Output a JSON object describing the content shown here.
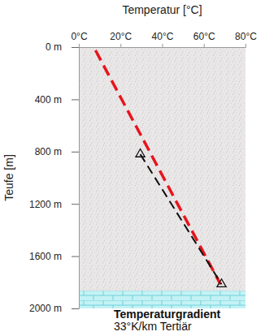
{
  "chart_data": {
    "type": "line",
    "x_label": "Temperatur [°C]",
    "y_label": "Teufe [m]",
    "xlim": [
      0,
      80
    ],
    "xticks": [
      {
        "value": 0,
        "label": "0°C"
      },
      {
        "value": 20,
        "label": "20°C"
      },
      {
        "value": 40,
        "label": "40°C"
      },
      {
        "value": 60,
        "label": "60°C"
      },
      {
        "value": 80,
        "label": "80°C"
      }
    ],
    "ylim": [
      0,
      2000
    ],
    "yticks": [
      {
        "value": 0,
        "label": "0 m"
      },
      {
        "value": 400,
        "label": "400 m"
      },
      {
        "value": 800,
        "label": "800 m"
      },
      {
        "value": 1200,
        "label": "1200 m"
      },
      {
        "value": 1600,
        "label": "1600 m"
      },
      {
        "value": 2000,
        "label": "2000 m"
      }
    ],
    "grid": false,
    "series": [
      {
        "name": null,
        "color": "#e8141c",
        "line_style": "dashed",
        "marker": "none",
        "x": [
          8,
          68
        ],
        "values": [
          25,
          1815
        ]
      },
      {
        "name": null,
        "color": "#111111",
        "line_style": "dashed",
        "marker": "triangle",
        "x": [
          29.5,
          68.5
        ],
        "values": [
          820,
          1815
        ]
      }
    ],
    "layers": [
      {
        "top": 1865,
        "bottom": 2000,
        "color": "#c4f2f4"
      }
    ],
    "annotations": [
      "Temperaturgradient",
      "33°K/km Tertiär"
    ]
  }
}
